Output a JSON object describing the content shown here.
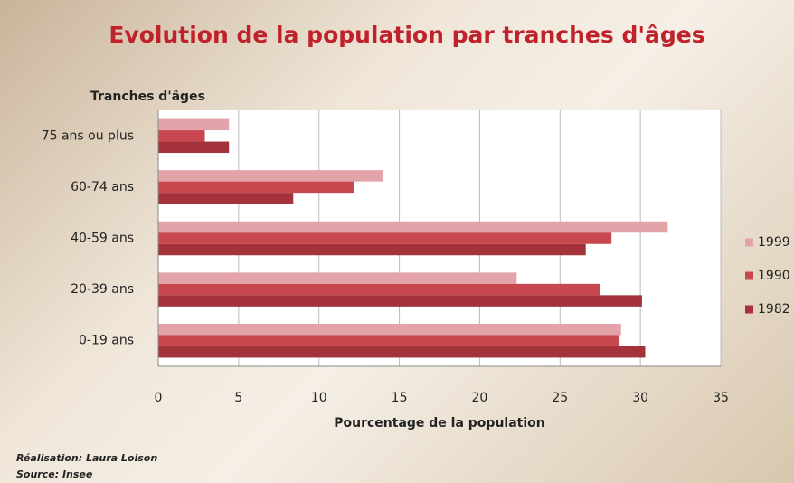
{
  "chart_data": {
    "type": "barh",
    "title": "Evolution de la population par tranches d'âges",
    "ylabel": "Tranches d'âges",
    "xlabel": "Pourcentage de la population",
    "categories": [
      "75 ans ou plus",
      "60-74 ans",
      "40-59 ans",
      "20-39 ans",
      "0-19 ans"
    ],
    "series": [
      {
        "name": "1999",
        "color": "#e3a4a9",
        "values": [
          4.4,
          14.0,
          31.7,
          22.3,
          28.8
        ]
      },
      {
        "name": "1990",
        "color": "#c94850",
        "values": [
          2.9,
          12.2,
          28.2,
          27.5,
          28.7
        ]
      },
      {
        "name": "1982",
        "color": "#a3323a",
        "values": [
          4.4,
          8.4,
          26.6,
          30.1,
          30.3
        ]
      }
    ],
    "xlim": [
      0,
      35
    ],
    "xticks": [
      0,
      5,
      10,
      15,
      20,
      25,
      30,
      35
    ],
    "grid": true,
    "legend": "right",
    "notes": [
      "Réalisation: Laura Loison",
      "Source: Insee"
    ]
  }
}
